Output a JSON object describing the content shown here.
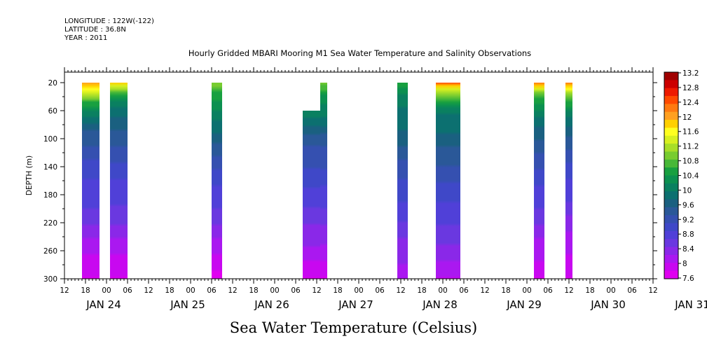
{
  "header": {
    "longitude": "LONGITUDE : 122W(-122)",
    "latitude": "LATITUDE : 36.8N",
    "year": "YEAR : 2011"
  },
  "title": "Hourly Gridded MBARI Mooring M1 Sea Water Temperature and Salinity Observations",
  "bottom_title": "Sea Water Temperature (Celsius)",
  "chart_data": {
    "type": "heatmap",
    "title": "Hourly Gridded MBARI Mooring M1 Sea Water Temperature and Salinity Observations",
    "ylabel": "DEPTH (m)",
    "y_ticks": [
      20,
      60,
      100,
      140,
      180,
      220,
      260,
      300
    ],
    "ylim": [
      300,
      5
    ],
    "x_hour_ticks": [
      "12",
      "18",
      "00",
      "06",
      "12",
      "18",
      "00",
      "06",
      "12",
      "18",
      "00",
      "06",
      "12",
      "18",
      "00",
      "06",
      "12",
      "18",
      "00",
      "06",
      "12",
      "18",
      "00",
      "06",
      "12",
      "18",
      "00",
      "06",
      "12"
    ],
    "x_day_labels": [
      "JAN 24",
      "JAN 25",
      "JAN 26",
      "JAN 27",
      "JAN 28",
      "JAN 29",
      "JAN 30",
      "JAN 31"
    ],
    "colorbar_ticks": [
      "13.2",
      "12.8",
      "12.4",
      "12",
      "11.6",
      "11.2",
      "10.8",
      "10.4",
      "10",
      "9.6",
      "9.2",
      "8.8",
      "8.4",
      "8",
      "7.6"
    ],
    "colorbar_colors": [
      "#a00000",
      "#cc0000",
      "#ee1a00",
      "#ff4a00",
      "#ff7a10",
      "#ffa020",
      "#ffd000",
      "#ffff20",
      "#d8f020",
      "#a8de28",
      "#78cc30",
      "#48b838",
      "#18a040",
      "#0c9050",
      "#0a8060",
      "#0c7070",
      "#1a6080",
      "#2a5898",
      "#3550b0",
      "#3f48c8",
      "#5040d8",
      "#6a38e0",
      "#8a28e8",
      "#aa18f0",
      "#c808f0",
      "#e000f0"
    ],
    "range": [
      7.6,
      13.4
    ],
    "segments": [
      {
        "start": "JAN 23 17:00",
        "end": "JAN 23 22:00",
        "top_depth": 20,
        "profile": [
          [
            20,
            12.1
          ],
          [
            30,
            11.6
          ],
          [
            40,
            11.2
          ],
          [
            50,
            10.6
          ],
          [
            60,
            10.3
          ],
          [
            70,
            10.0
          ],
          [
            90,
            9.6
          ],
          [
            120,
            9.3
          ],
          [
            140,
            9.0
          ],
          [
            170,
            8.9
          ],
          [
            200,
            8.7
          ],
          [
            230,
            8.4
          ],
          [
            260,
            8.1
          ],
          [
            280,
            7.9
          ],
          [
            300,
            7.8
          ]
        ]
      },
      {
        "start": "JAN 24 01:00",
        "end": "JAN 24 06:00",
        "top_depth": 20,
        "profile": [
          [
            20,
            11.9
          ],
          [
            30,
            11.2
          ],
          [
            40,
            10.5
          ],
          [
            50,
            10.2
          ],
          [
            70,
            9.8
          ],
          [
            90,
            9.6
          ],
          [
            120,
            9.3
          ],
          [
            150,
            9.0
          ],
          [
            180,
            8.8
          ],
          [
            210,
            8.6
          ],
          [
            240,
            8.3
          ],
          [
            270,
            8.0
          ],
          [
            300,
            7.8
          ]
        ]
      },
      {
        "start": "JAN 25 06:00",
        "end": "JAN 25 09:00",
        "top_depth": 20,
        "profile": [
          [
            20,
            11.1
          ],
          [
            30,
            10.8
          ],
          [
            50,
            10.4
          ],
          [
            80,
            10.0
          ],
          [
            100,
            9.7
          ],
          [
            130,
            9.3
          ],
          [
            160,
            9.0
          ],
          [
            190,
            8.8
          ],
          [
            220,
            8.5
          ],
          [
            260,
            8.1
          ],
          [
            300,
            7.7
          ]
        ]
      },
      {
        "start": "JAN 26 08:00",
        "end": "JAN 26 13:00",
        "top_depth": 60,
        "profile": [
          [
            60,
            10.2
          ],
          [
            80,
            9.9
          ],
          [
            100,
            9.5
          ],
          [
            120,
            9.3
          ],
          [
            140,
            9.2
          ],
          [
            160,
            9.0
          ],
          [
            190,
            8.8
          ],
          [
            220,
            8.5
          ],
          [
            250,
            8.3
          ],
          [
            280,
            8.0
          ],
          [
            300,
            7.8
          ]
        ]
      },
      {
        "start": "JAN 26 13:00",
        "end": "JAN 26 15:00",
        "top_depth": 20,
        "profile": [
          [
            20,
            11.1
          ],
          [
            40,
            10.4
          ],
          [
            60,
            10.2
          ],
          [
            80,
            9.9
          ],
          [
            100,
            9.5
          ],
          [
            120,
            9.3
          ],
          [
            140,
            9.2
          ],
          [
            160,
            9.0
          ],
          [
            190,
            8.8
          ],
          [
            220,
            8.5
          ],
          [
            250,
            8.3
          ],
          [
            280,
            8.0
          ],
          [
            300,
            7.8
          ]
        ]
      },
      {
        "start": "JAN 27 11:00",
        "end": "JAN 27 14:00",
        "top_depth": 20,
        "profile": [
          [
            20,
            10.6
          ],
          [
            40,
            10.2
          ],
          [
            60,
            10.0
          ],
          [
            90,
            9.8
          ],
          [
            120,
            9.5
          ],
          [
            150,
            9.2
          ],
          [
            180,
            9.0
          ],
          [
            210,
            8.8
          ],
          [
            240,
            8.5
          ],
          [
            270,
            8.3
          ],
          [
            300,
            8.2
          ]
        ]
      },
      {
        "start": "JAN 27 22:00",
        "end": "JAN 28 05:00",
        "top_depth": 20,
        "profile": [
          [
            20,
            12.6
          ],
          [
            25,
            12.0
          ],
          [
            30,
            11.5
          ],
          [
            40,
            10.9
          ],
          [
            50,
            10.4
          ],
          [
            60,
            10.1
          ],
          [
            80,
            9.9
          ],
          [
            100,
            9.8
          ],
          [
            120,
            9.5
          ],
          [
            150,
            9.3
          ],
          [
            180,
            9.0
          ],
          [
            210,
            8.8
          ],
          [
            240,
            8.6
          ],
          [
            270,
            8.3
          ],
          [
            300,
            8.0
          ]
        ]
      },
      {
        "start": "JAN 29 02:00",
        "end": "JAN 29 05:00",
        "top_depth": 20,
        "profile": [
          [
            20,
            12.3
          ],
          [
            30,
            11.4
          ],
          [
            40,
            10.8
          ],
          [
            60,
            10.2
          ],
          [
            80,
            9.9
          ],
          [
            100,
            9.6
          ],
          [
            130,
            9.3
          ],
          [
            160,
            9.0
          ],
          [
            190,
            8.8
          ],
          [
            220,
            8.5
          ],
          [
            250,
            8.2
          ],
          [
            280,
            8.0
          ],
          [
            300,
            7.8
          ]
        ]
      },
      {
        "start": "JAN 29 11:00",
        "end": "JAN 29 13:00",
        "top_depth": 20,
        "profile": [
          [
            20,
            12.3
          ],
          [
            30,
            11.6
          ],
          [
            40,
            11.0
          ],
          [
            50,
            10.6
          ],
          [
            70,
            10.0
          ],
          [
            90,
            9.7
          ],
          [
            120,
            9.3
          ],
          [
            150,
            9.0
          ],
          [
            180,
            8.8
          ],
          [
            210,
            8.5
          ],
          [
            240,
            8.2
          ],
          [
            270,
            8.0
          ],
          [
            300,
            7.8
          ]
        ]
      }
    ]
  }
}
